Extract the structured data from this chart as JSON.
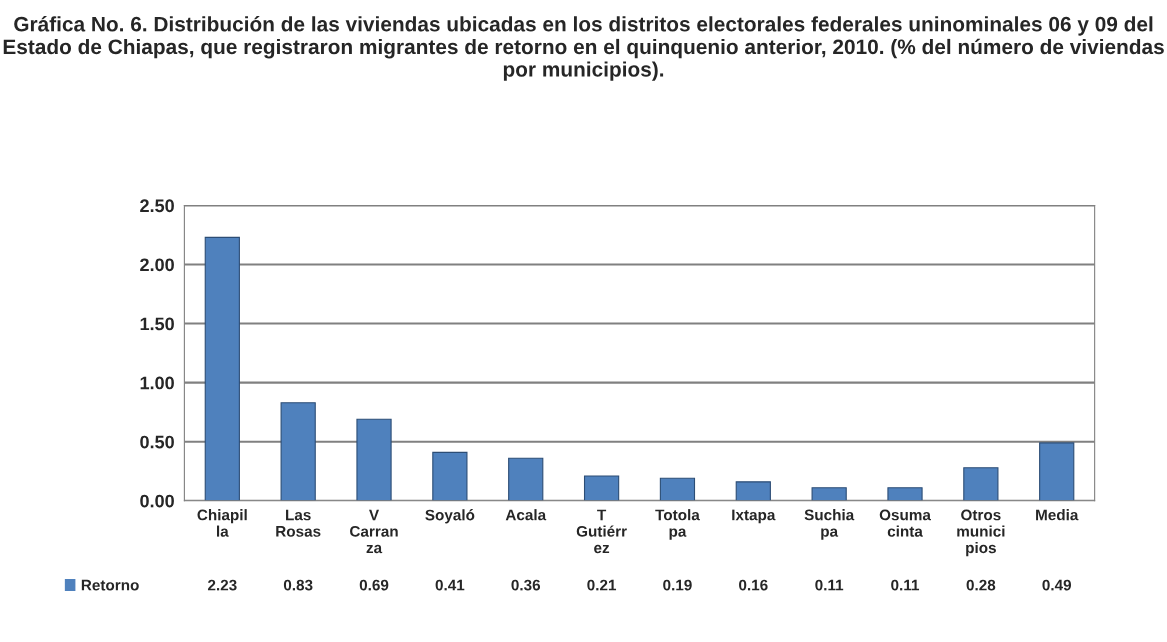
{
  "chart_data": {
    "type": "bar",
    "title": "Gráfica No. 6. Distribución de las viviendas ubicadas en los distritos electorales federales uninominales 06 y 09 del Estado de Chiapas, que registraron migrantes de retorno en el quinquenio anterior, 2010. (% del número de viviendas por municipios).",
    "categories": [
      "Chiapil\nla",
      "Las\nRosas",
      "V\nCarran\nza",
      "Soyaló",
      "Acala",
      "T\nGutiérr\nez",
      "Totola\npa",
      "Ixtapa",
      "Suchia\npa",
      "Osuma\ncinta",
      "Otros\nmunici\npios",
      "Media"
    ],
    "series": [
      {
        "name": "Retorno",
        "color": "#4f81bd",
        "values": [
          2.23,
          0.83,
          0.69,
          0.41,
          0.36,
          0.21,
          0.19,
          0.16,
          0.11,
          0.11,
          0.28,
          0.49
        ]
      }
    ],
    "ylim": [
      0,
      2.5
    ],
    "yticks": [
      {
        "value": 0,
        "label": "0.00"
      },
      {
        "value": 0.5,
        "label": "0.50"
      },
      {
        "value": 1,
        "label": "1.00"
      },
      {
        "value": 1.5,
        "label": "1.50"
      },
      {
        "value": 2,
        "label": "2.00"
      },
      {
        "value": 2.5,
        "label": "2.50"
      }
    ],
    "grid": "y",
    "legend": "bottom left",
    "data_labels": true
  }
}
